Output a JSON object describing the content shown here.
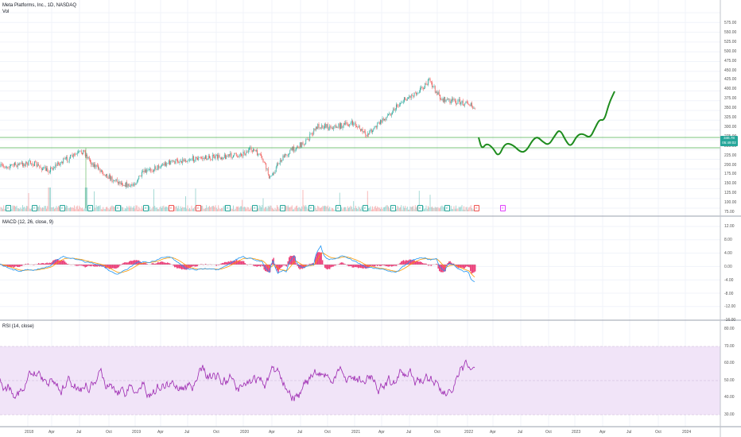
{
  "header": {
    "title": "Meta Platforms, Inc., 1D, NASDAQ",
    "vol_label": "Vol"
  },
  "panes": {
    "macd_label": "MACD (12, 26, close, 9)",
    "rsi_label": "RSI (14, close)"
  },
  "price_tag": {
    "price": "346.78",
    "timer": "05:49:02"
  },
  "colors": {
    "up": "#26a69a",
    "down": "#ef5350",
    "forecast": "#1e8c1e",
    "support": "#7bc47b",
    "macd": "#2196f3",
    "signal": "#ff9800",
    "hist": "#e91e63",
    "rsi": "#9c27b0",
    "rsi_band": "#f1e4f8"
  },
  "axes": {
    "price": [
      "575.00",
      "550.00",
      "525.00",
      "500.00",
      "475.00",
      "450.00",
      "425.00",
      "400.00",
      "375.00",
      "350.00",
      "325.00",
      "300.00",
      "275.00",
      "250.00",
      "225.00",
      "200.00",
      "175.00",
      "150.00",
      "125.00",
      "100.00",
      "75.00"
    ],
    "price_top": [
      "575.00",
      "550.00"
    ],
    "macd": [
      "12.00",
      "8.00",
      "4.00",
      "0.00",
      "-4.00",
      "-8.00",
      "-12.00",
      "-16.00"
    ],
    "rsi": [
      "80.00",
      "70.00",
      "60.00",
      "50.00",
      "40.00",
      "30.00"
    ],
    "time": [
      "2018",
      "Apr",
      "Jul",
      "Oct",
      "2019",
      "Apr",
      "Jul",
      "Oct",
      "2020",
      "Apr",
      "Jul",
      "Oct",
      "2021",
      "Apr",
      "Jul",
      "Oct",
      "2022",
      "Apr",
      "Jul",
      "Oct",
      "2023",
      "Apr",
      "Jul",
      "Oct",
      "2024"
    ]
  },
  "earnings": [
    "E",
    "E",
    "E",
    "E",
    "E",
    "E",
    "E",
    "E",
    "E",
    "E",
    "E",
    "E",
    "E",
    "E",
    "E",
    "E",
    "E",
    "E",
    "E",
    "D"
  ]
}
